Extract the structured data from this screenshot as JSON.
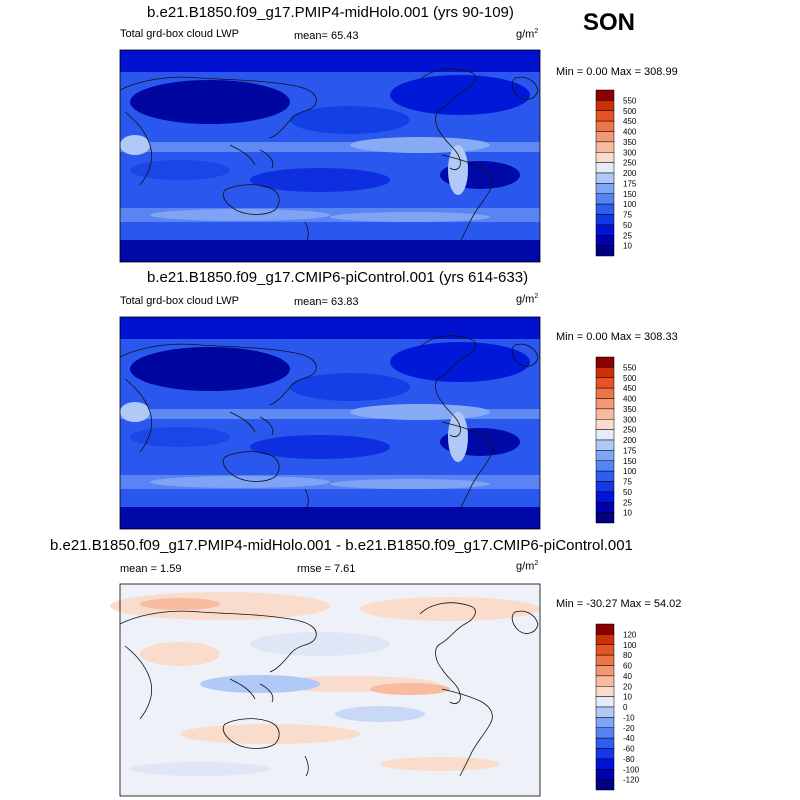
{
  "season": "SON",
  "panels": [
    {
      "title": "b.e21.B1850.f09_g17.PMIP4-midHolo.001 (yrs 90-109)",
      "left_label": "Total grd-box cloud LWP",
      "stat1": "mean=  65.43",
      "stat2": "",
      "unit": "g/m",
      "unit_exp": "2",
      "minmax": "Min =   0.00 Max = 308.99"
    },
    {
      "title": "b.e21.B1850.f09_g17.CMIP6-piControl.001 (yrs 614-633)",
      "left_label": "Total grd-box cloud LWP",
      "stat1": "mean=  63.83",
      "stat2": "",
      "unit": "g/m",
      "unit_exp": "2",
      "minmax": "Min =   0.00 Max = 308.33"
    },
    {
      "title": "b.e21.B1850.f09_g17.PMIP4-midHolo.001 - b.e21.B1850.f09_g17.CMIP6-piControl.001",
      "left_label": "mean =   1.59",
      "stat1": "rmse =   7.61",
      "stat2": "",
      "unit": "g/m",
      "unit_exp": "2",
      "minmax": "Min = -30.27 Max =  54.02"
    }
  ],
  "chart_data": [
    {
      "type": "heatmap",
      "map": "global cylindrical equidistant, coastlines",
      "variable": "Total grd-box cloud LWP",
      "mean": 65.43,
      "min": 0.0,
      "max": 308.99,
      "units": "g/m2",
      "colorbar_levels": [
        "10",
        "25",
        "50",
        "75",
        "100",
        "150",
        "175",
        "200",
        "250",
        "300",
        "350",
        "400",
        "450",
        "500",
        "550"
      ],
      "colorbar_colors": [
        "#010081",
        "#0000b0",
        "#0013d6",
        "#1438e6",
        "#2d5ef0",
        "#5585f3",
        "#7ea6f5",
        "#b1c9f7",
        "#e3ecf8",
        "#f9dccb",
        "#f8bb9f",
        "#f39874",
        "#ec7549",
        "#e45427",
        "#cc3007",
        "#8b0000"
      ]
    },
    {
      "type": "heatmap",
      "map": "global cylindrical equidistant, coastlines",
      "variable": "Total grd-box cloud LWP",
      "mean": 63.83,
      "min": 0.0,
      "max": 308.33,
      "units": "g/m2",
      "colorbar_levels": [
        "10",
        "25",
        "50",
        "75",
        "100",
        "150",
        "175",
        "200",
        "250",
        "300",
        "350",
        "400",
        "450",
        "500",
        "550"
      ],
      "colorbar_colors": [
        "#010081",
        "#0000b0",
        "#0013d6",
        "#1438e6",
        "#2d5ef0",
        "#5585f3",
        "#7ea6f5",
        "#b1c9f7",
        "#e3ecf8",
        "#f9dccb",
        "#f8bb9f",
        "#f39874",
        "#ec7549",
        "#e45427",
        "#cc3007",
        "#8b0000"
      ]
    },
    {
      "type": "heatmap",
      "map": "global cylindrical equidistant, coastlines",
      "variable": "difference",
      "mean": 1.59,
      "rmse": 7.61,
      "min": -30.27,
      "max": 54.02,
      "units": "g/m2",
      "colorbar_levels": [
        "-120",
        "-100",
        "-80",
        "-60",
        "-40",
        "-20",
        "-10",
        "0",
        "10",
        "20",
        "40",
        "60",
        "80",
        "100",
        "120"
      ],
      "colorbar_colors": [
        "#010081",
        "#0000b0",
        "#0013d6",
        "#1438e6",
        "#2d5ef0",
        "#5585f3",
        "#7ea6f5",
        "#b1c9f7",
        "#e3ecf8",
        "#f9dccb",
        "#f8bb9f",
        "#f39874",
        "#ec7549",
        "#e45427",
        "#cc3007",
        "#8b0000"
      ]
    }
  ]
}
